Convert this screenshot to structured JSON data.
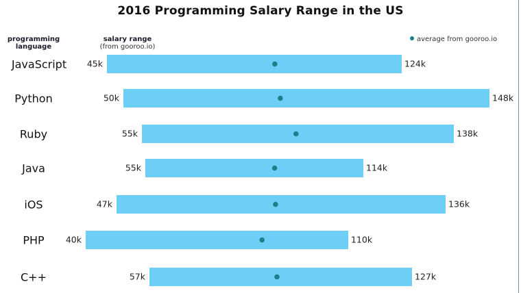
{
  "chart_data": {
    "type": "bar",
    "subtype": "floating-range-with-average-dots",
    "title": "2016 Programming Salary Range in the US",
    "category_header": [
      "programming",
      "language"
    ],
    "range_header": {
      "label": "salary range",
      "source": "(from gooroo.io)"
    },
    "legend": {
      "label": "average from gooroo.io",
      "position": "top-right",
      "color": "#1a8089"
    },
    "unit": "k USD",
    "categories": [
      "JavaScript",
      "Python",
      "Ruby",
      "Java",
      "iOS",
      "PHP",
      "C++"
    ],
    "series": [
      {
        "name": "min",
        "values": [
          45,
          50,
          55,
          55,
          47,
          40,
          57
        ],
        "labels": [
          "45k",
          "50k",
          "55k",
          "55k",
          "47k",
          "40k",
          "57k"
        ]
      },
      {
        "name": "max",
        "values": [
          124,
          148,
          138,
          114,
          136,
          110,
          127
        ],
        "labels": [
          "124k",
          "148k",
          "138k",
          "114k",
          "136k",
          "110k",
          "127k"
        ]
      },
      {
        "name": "average (estimated)",
        "values": [
          90,
          92,
          96,
          90,
          90,
          87,
          91
        ]
      }
    ],
    "colors": {
      "bar": "#6dcff6",
      "dot": "#1a8089"
    },
    "grid": false
  }
}
